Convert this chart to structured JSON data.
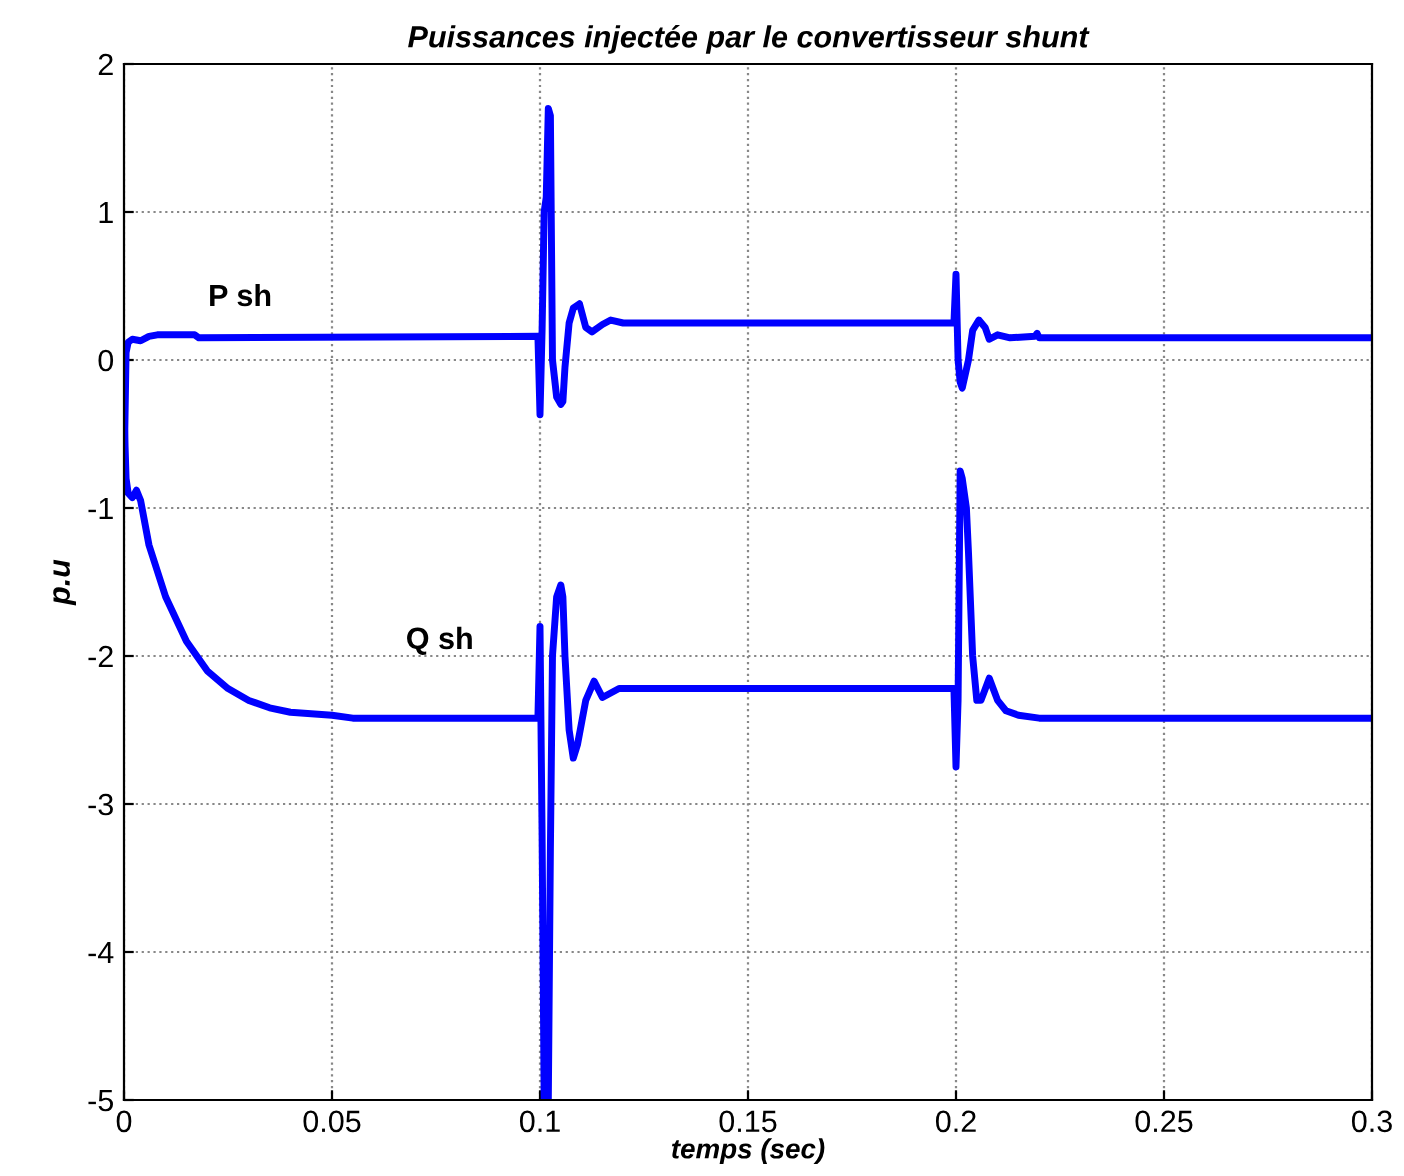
{
  "chart_data": {
    "type": "line",
    "title": "Puissances injectée par le convertisseur shunt",
    "xlabel": "temps (sec)",
    "ylabel": "p.u",
    "xlim": [
      0,
      0.3
    ],
    "ylim": [
      -5,
      2
    ],
    "xticks": [
      0,
      0.05,
      0.1,
      0.15,
      0.2,
      0.25,
      0.3
    ],
    "yticks": [
      -5,
      -4,
      -3,
      -2,
      -1,
      0,
      1,
      2
    ],
    "grid": true,
    "line_style": "solid",
    "marker": "none",
    "series": [
      {
        "name": "P sh",
        "color": "#0000ff",
        "x": [
          0,
          0.0005,
          0.001,
          0.002,
          0.004,
          0.006,
          0.008,
          0.017,
          0.018,
          0.0995,
          0.1,
          0.1005,
          0.101,
          0.1015,
          0.102,
          0.1025,
          0.103,
          0.104,
          0.105,
          0.1055,
          0.106,
          0.107,
          0.108,
          0.1095,
          0.111,
          0.1125,
          0.115,
          0.117,
          0.12,
          0.1995,
          0.2,
          0.2005,
          0.201,
          0.2015,
          0.203,
          0.204,
          0.2055,
          0.207,
          0.208,
          0.21,
          0.213,
          0.219,
          0.2195,
          0.22,
          0.3
        ],
        "values": [
          -0.8,
          0.05,
          0.12,
          0.14,
          0.13,
          0.16,
          0.17,
          0.17,
          0.15,
          0.16,
          -0.37,
          0.2,
          1.0,
          1.1,
          1.7,
          1.65,
          0.0,
          -0.25,
          -0.3,
          -0.28,
          -0.05,
          0.25,
          0.35,
          0.38,
          0.22,
          0.19,
          0.24,
          0.27,
          0.25,
          0.25,
          0.58,
          0.0,
          -0.15,
          -0.19,
          0.0,
          0.2,
          0.27,
          0.22,
          0.14,
          0.17,
          0.15,
          0.16,
          0.18,
          0.15,
          0.15
        ]
      },
      {
        "name": "Q sh",
        "color": "#0000ff",
        "x": [
          0,
          0.0005,
          0.001,
          0.002,
          0.003,
          0.004,
          0.006,
          0.01,
          0.015,
          0.02,
          0.025,
          0.03,
          0.035,
          0.04,
          0.05,
          0.055,
          0.0995,
          0.1,
          0.1005,
          0.101,
          0.1015,
          0.102,
          0.1025,
          0.103,
          0.104,
          0.105,
          0.1055,
          0.106,
          0.107,
          0.108,
          0.109,
          0.111,
          0.113,
          0.115,
          0.117,
          0.119,
          0.1995,
          0.2,
          0.2005,
          0.201,
          0.2015,
          0.2025,
          0.203,
          0.204,
          0.205,
          0.206,
          0.208,
          0.21,
          0.212,
          0.215,
          0.22,
          0.3
        ],
        "values": [
          -0.35,
          -0.8,
          -0.9,
          -0.93,
          -0.88,
          -0.95,
          -1.25,
          -1.6,
          -1.9,
          -2.1,
          -2.22,
          -2.3,
          -2.35,
          -2.38,
          -2.4,
          -2.42,
          -2.42,
          -1.8,
          -3.2,
          -5.0,
          -4.5,
          -5.0,
          -3.3,
          -2.0,
          -1.6,
          -1.52,
          -1.6,
          -2.0,
          -2.5,
          -2.69,
          -2.6,
          -2.3,
          -2.17,
          -2.28,
          -2.25,
          -2.22,
          -2.22,
          -2.75,
          -2.3,
          -0.75,
          -0.8,
          -1.0,
          -1.3,
          -2.0,
          -2.3,
          -2.3,
          -2.15,
          -2.3,
          -2.37,
          -2.4,
          -2.42,
          -2.42
        ]
      }
    ]
  }
}
